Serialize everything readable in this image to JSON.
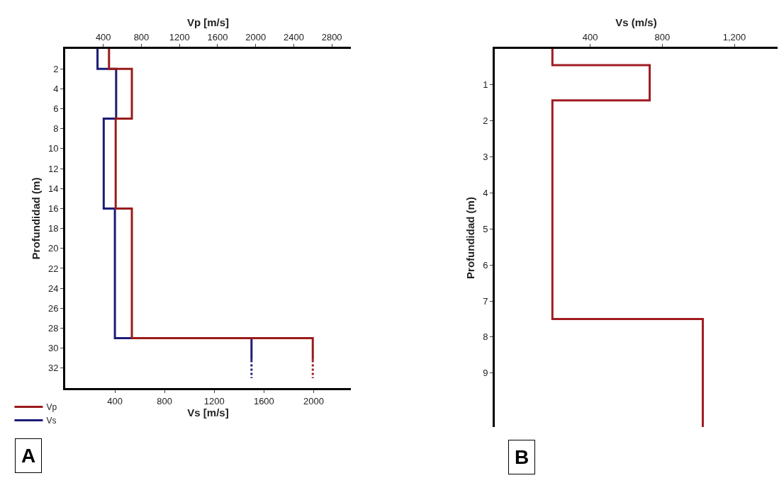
{
  "chart_data": [
    {
      "type": "line",
      "ylabel": "Profundidad (m)",
      "xlabel": "Vs [m/s]",
      "x2label": "Vp [m/s]",
      "annotations": [
        "A"
      ],
      "xlim": [
        0,
        2300
      ],
      "xticks": [
        400,
        800,
        1200,
        1600,
        2000
      ],
      "x2lim": [
        0,
        3000
      ],
      "x2ticks": [
        400,
        800,
        1200,
        1600,
        2000,
        2400,
        2800
      ],
      "ylim": [
        34,
        0
      ],
      "yticks": [
        2,
        4,
        6,
        8,
        10,
        12,
        14,
        16,
        18,
        20,
        22,
        24,
        26,
        28,
        30,
        32
      ],
      "grid": false,
      "legend": "bottom left",
      "marker": "none",
      "line_style": "solid",
      "series": [
        {
          "name": "Vp",
          "color": "#9b1b1b",
          "axis": "x2",
          "x": [
            460,
            460,
            700,
            700,
            530,
            530,
            700,
            700,
            2600,
            2600
          ],
          "values": [
            0,
            2,
            2,
            7,
            7,
            16,
            16,
            29,
            29,
            31.2
          ]
        },
        {
          "name": "Vs",
          "color": "#1c1c78",
          "x": [
            260,
            260,
            410,
            410,
            310,
            310,
            400,
            400,
            1500,
            1500
          ],
          "values": [
            0,
            2,
            2,
            7,
            7,
            16,
            16,
            29,
            29,
            31.2
          ]
        },
        {
          "color": "#9b1b1b",
          "axis": "x2",
          "line_style": "dotted",
          "x": [
            2600,
            2600
          ],
          "values": [
            31.2,
            33
          ]
        },
        {
          "color": "#1c1c78",
          "line_style": "dotted",
          "x": [
            1500,
            1500
          ],
          "values": [
            31.2,
            33
          ]
        }
      ]
    },
    {
      "type": "line",
      "ylabel": "Profundidad (m)",
      "xlabel": "Vs (m/s)",
      "annotations": [
        "B"
      ],
      "xlim": [
        -130,
        1440
      ],
      "xticks": [
        400,
        800,
        {
          "value": 1200,
          "label": "1,200"
        }
      ],
      "ylim": [
        10.5,
        0
      ],
      "yticks": [
        1,
        2,
        3,
        4,
        5,
        6,
        7,
        8,
        9
      ],
      "grid": false,
      "marker": "none",
      "line_style": "solid",
      "series": [
        {
          "color": "#a01c22",
          "x": [
            190,
            190,
            730,
            730,
            190,
            190,
            1025,
            1025
          ],
          "values": [
            0,
            0.45,
            0.45,
            1.43,
            1.43,
            7.5,
            7.5,
            10.5
          ]
        }
      ]
    }
  ]
}
